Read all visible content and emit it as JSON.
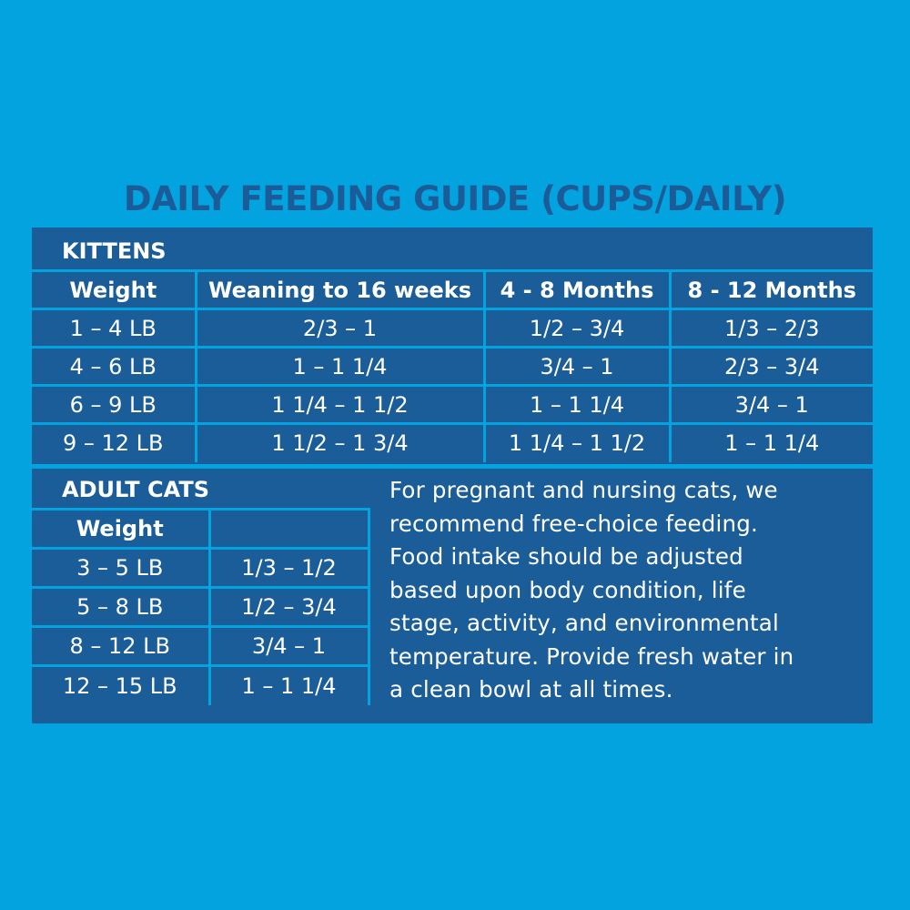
{
  "title": "DAILY FEEDING GUIDE (CUPS/DAILY)",
  "kittens": {
    "label": "KITTENS",
    "headers": [
      "Weight",
      "Weaning to 16 weeks",
      "4 - 8 Months",
      "8 - 12 Months"
    ],
    "rows": [
      [
        "1 – 4 LB",
        "2/3 – 1",
        "1/2 – 3/4",
        "1/3 – 2/3"
      ],
      [
        "4 – 6 LB",
        "1 – 1 1/4",
        "3/4 – 1",
        "2/3 – 3/4"
      ],
      [
        "6 – 9 LB",
        "1 1/4 – 1 1/2",
        "1 – 1 1/4",
        "3/4 – 1"
      ],
      [
        "9 – 12 LB",
        "1 1/2 – 1 3/4",
        "1 1/4 – 1 1/2",
        "1 – 1 1/4"
      ]
    ]
  },
  "adult_cats": {
    "label": "ADULT CATS",
    "headers": [
      "Weight",
      ""
    ],
    "rows": [
      [
        "3 – 5 LB",
        "1/3 – 1/2"
      ],
      [
        "5 – 8 LB",
        "1/2 – 3/4"
      ],
      [
        "8 – 12 LB",
        "3/4 – 1"
      ],
      [
        "12 – 15 LB",
        "1 – 1 1/4"
      ]
    ]
  },
  "note": {
    "lines": [
      "For pregnant and nursing cats, we",
      "recommend free-choice feeding.",
      "Food intake should be adjusted",
      "based upon body condition, life",
      "stage, activity, and environmental",
      "temperature. Provide fresh water in",
      "a clean bowl at all times."
    ]
  },
  "colors": {
    "background": "#03a3df",
    "panel": "#1a5d98",
    "title": "#1b5c98",
    "text": "#ffffff"
  }
}
